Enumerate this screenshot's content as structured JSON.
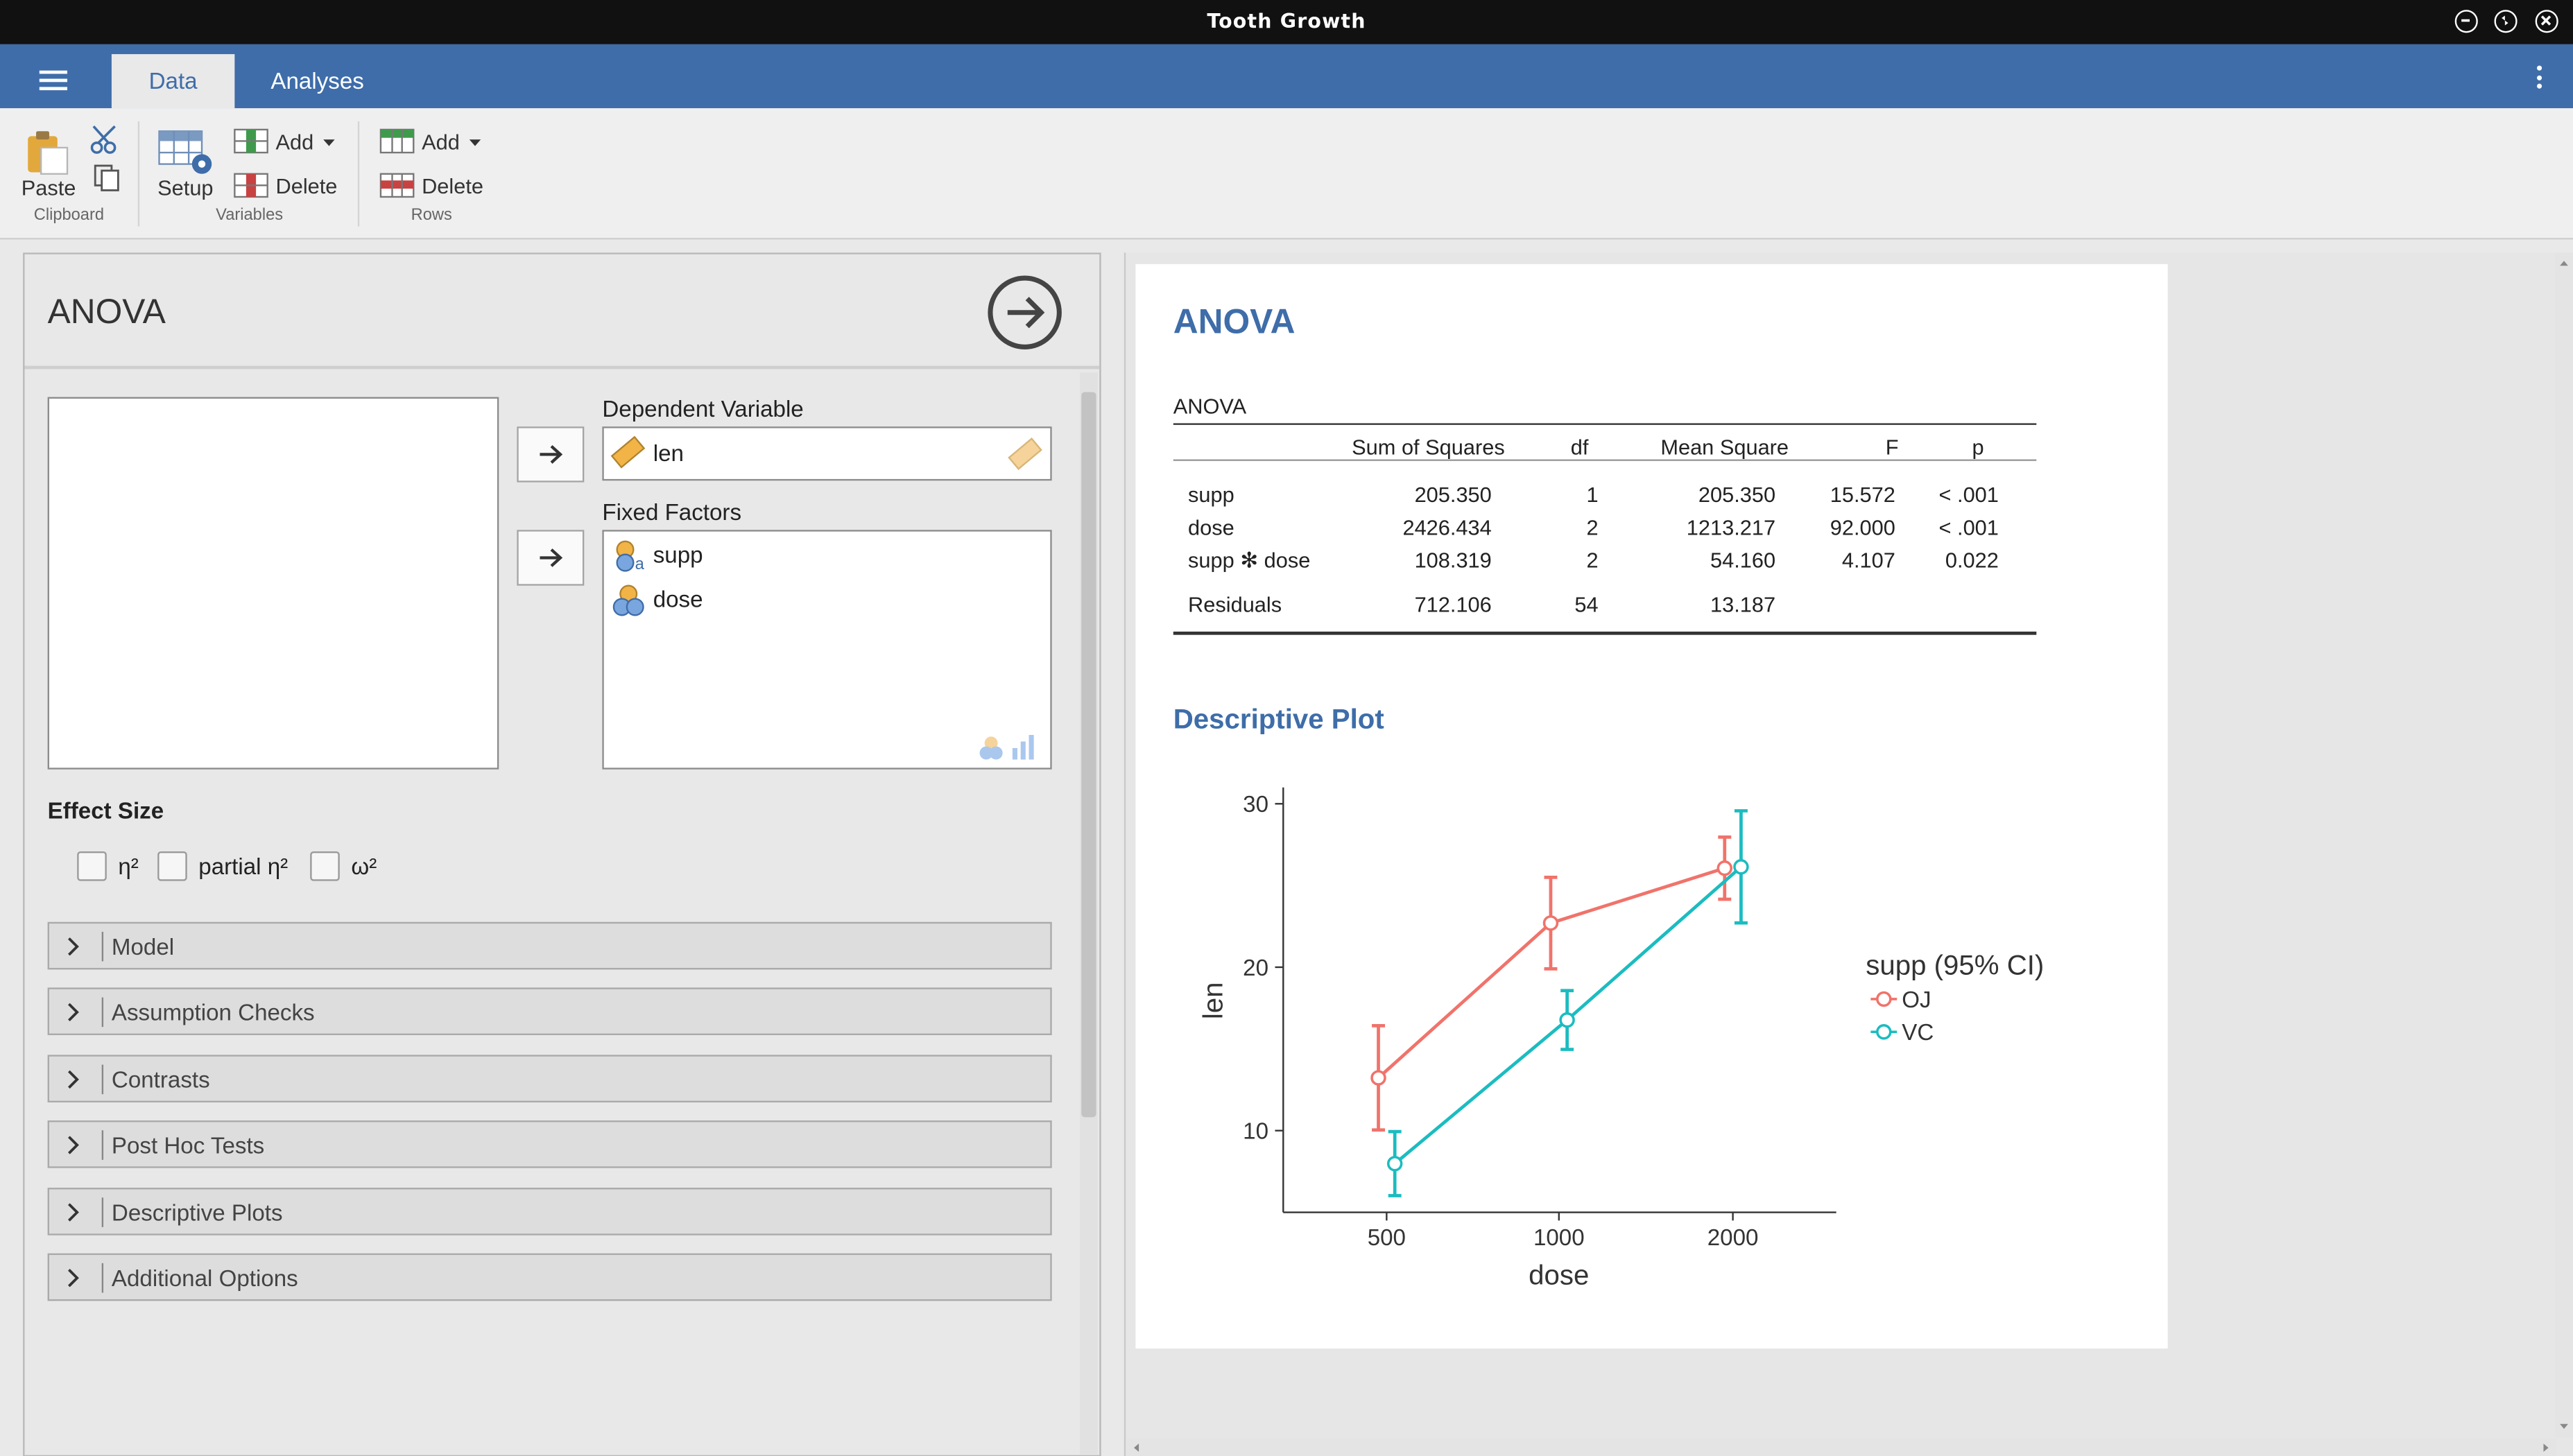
{
  "window": {
    "title": "Tooth Growth"
  },
  "tabs": [
    {
      "label": "Data"
    },
    {
      "label": "Analyses"
    }
  ],
  "ribbon": {
    "paste_label": "Paste",
    "clipboard_group": "Clipboard",
    "setup_label": "Setup",
    "var_add_label": "Add",
    "var_delete_label": "Delete",
    "variables_group": "Variables",
    "row_add_label": "Add",
    "row_delete_label": "Delete",
    "rows_group": "Rows"
  },
  "options": {
    "title": "ANOVA",
    "dependent_label": "Dependent Variable",
    "dependent_value": "len",
    "factors_label": "Fixed Factors",
    "factors": [
      "supp",
      "dose"
    ],
    "effect_size_label": "Effect Size",
    "effect_sizes": [
      "η²",
      "partial η²",
      "ω²"
    ],
    "sections": [
      "Model",
      "Assumption Checks",
      "Contrasts",
      "Post Hoc Tests",
      "Descriptive Plots",
      "Additional Options"
    ]
  },
  "results": {
    "heading": "ANOVA",
    "table": {
      "title": "ANOVA",
      "columns": [
        "",
        "Sum of Squares",
        "df",
        "Mean Square",
        "F",
        "p"
      ],
      "rows": [
        [
          "supp",
          "205.350",
          "1",
          "205.350",
          "15.572",
          "< .001"
        ],
        [
          "dose",
          "2426.434",
          "2",
          "1213.217",
          "92.000",
          "< .001"
        ],
        [
          "supp ✻ dose",
          "108.319",
          "2",
          "54.160",
          "4.107",
          "0.022"
        ],
        [
          "Residuals",
          "712.106",
          "54",
          "13.187",
          "",
          ""
        ]
      ]
    },
    "plot_heading": "Descriptive Plot"
  },
  "chart_data": {
    "type": "line",
    "title": "",
    "xlabel": "dose",
    "ylabel": "len",
    "categories": [
      "500",
      "1000",
      "2000"
    ],
    "yticks": [
      10,
      20,
      30
    ],
    "ylim": [
      5,
      31
    ],
    "legend_title": "supp (95% CI)",
    "legend_position": "right",
    "series": [
      {
        "name": "OJ",
        "color": "#f0736b",
        "values": [
          13.23,
          22.7,
          26.06
        ],
        "ci_low": [
          10.04,
          19.9,
          24.16
        ],
        "ci_high": [
          16.42,
          25.5,
          27.96
        ]
      },
      {
        "name": "VC",
        "color": "#1bbcc0",
        "values": [
          7.98,
          16.77,
          26.14
        ],
        "ci_low": [
          6.02,
          14.97,
          22.71
        ],
        "ci_high": [
          9.94,
          18.57,
          29.57
        ]
      }
    ]
  }
}
